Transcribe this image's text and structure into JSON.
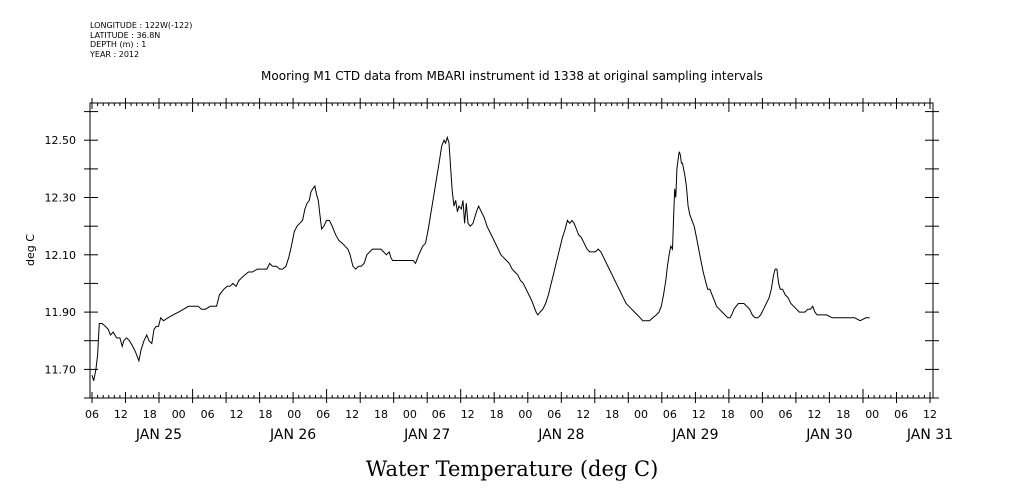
{
  "meta": {
    "longitude": "LONGITUDE : 122W(-122)",
    "latitude": "LATITUDE : 36.8N",
    "depth": "DEPTH (m) : 1",
    "year": "YEAR : 2012"
  },
  "chart_data": {
    "type": "line",
    "title": "Mooring M1 CTD data from MBARI instrument id 1338 at original sampling intervals",
    "xlabel": "Water Temperature (deg C)",
    "ylabel": "deg C",
    "xlim": [
      0,
      150
    ],
    "ylim": [
      11.6,
      12.63
    ],
    "hour_tick_labels": [
      "06",
      "12",
      "18",
      "00",
      "06",
      "12",
      "18",
      "00",
      "06",
      "12",
      "18",
      "00",
      "06",
      "12",
      "18",
      "00",
      "06",
      "12",
      "18",
      "00",
      "06",
      "12",
      "18",
      "00",
      "06",
      "12",
      "18",
      "00",
      "06",
      "12"
    ],
    "day_labels": [
      {
        "label": "JAN 25",
        "x": 12
      },
      {
        "label": "JAN 26",
        "x": 36
      },
      {
        "label": "JAN 27",
        "x": 60
      },
      {
        "label": "JAN 28",
        "x": 84
      },
      {
        "label": "JAN 29",
        "x": 108
      },
      {
        "label": "JAN 30",
        "x": 132
      },
      {
        "label": "JAN 31",
        "x": 150
      }
    ],
    "yticks": [
      {
        "value": 11.7,
        "label": "11.70"
      },
      {
        "value": 11.9,
        "label": "11.90"
      },
      {
        "value": 12.1,
        "label": "12.10"
      },
      {
        "value": 12.3,
        "label": "12.30"
      },
      {
        "value": 12.5,
        "label": "12.50"
      }
    ],
    "series": [
      {
        "points": [
          [
            0,
            11.68
          ],
          [
            0.3,
            11.66
          ],
          [
            0.7,
            11.7
          ],
          [
            1.0,
            11.75
          ],
          [
            1.3,
            11.86
          ],
          [
            1.8,
            11.86
          ],
          [
            2.4,
            11.85
          ],
          [
            2.9,
            11.84
          ],
          [
            3.3,
            11.82
          ],
          [
            3.8,
            11.83
          ],
          [
            4.4,
            11.81
          ],
          [
            5.0,
            11.81
          ],
          [
            5.4,
            11.78
          ],
          [
            5.7,
            11.8
          ],
          [
            6.2,
            11.81
          ],
          [
            6.7,
            11.8
          ],
          [
            7.3,
            11.78
          ],
          [
            7.8,
            11.76
          ],
          [
            8.4,
            11.73
          ],
          [
            8.8,
            11.77
          ],
          [
            9.3,
            11.8
          ],
          [
            9.8,
            11.82
          ],
          [
            10.2,
            11.8
          ],
          [
            10.7,
            11.79
          ],
          [
            11.1,
            11.84
          ],
          [
            11.5,
            11.85
          ],
          [
            11.9,
            11.85
          ],
          [
            12.3,
            11.88
          ],
          [
            12.8,
            11.87
          ],
          [
            13.6,
            11.88
          ],
          [
            14.5,
            11.89
          ],
          [
            15.5,
            11.9
          ],
          [
            16.4,
            11.91
          ],
          [
            17.3,
            11.92
          ],
          [
            18.2,
            11.92
          ],
          [
            19.0,
            11.92
          ],
          [
            19.6,
            11.91
          ],
          [
            20.3,
            11.91
          ],
          [
            21.2,
            11.92
          ],
          [
            22.3,
            11.92
          ],
          [
            22.8,
            11.96
          ],
          [
            23.6,
            11.98
          ],
          [
            24.2,
            11.99
          ],
          [
            24.7,
            11.99
          ],
          [
            25.2,
            12.0
          ],
          [
            25.8,
            11.99
          ],
          [
            26.3,
            12.01
          ],
          [
            26.8,
            12.02
          ],
          [
            27.4,
            12.03
          ],
          [
            28.0,
            12.04
          ],
          [
            28.7,
            12.04
          ],
          [
            29.6,
            12.05
          ],
          [
            30.5,
            12.05
          ],
          [
            31.3,
            12.05
          ],
          [
            31.8,
            12.07
          ],
          [
            32.3,
            12.06
          ],
          [
            33.0,
            12.06
          ],
          [
            33.6,
            12.05
          ],
          [
            34.1,
            12.05
          ],
          [
            34.7,
            12.06
          ],
          [
            35.2,
            12.09
          ],
          [
            35.7,
            12.13
          ],
          [
            36.2,
            12.18
          ],
          [
            36.7,
            12.2
          ],
          [
            37.2,
            12.21
          ],
          [
            37.7,
            12.22
          ],
          [
            38.1,
            12.26
          ],
          [
            38.5,
            12.28
          ],
          [
            38.9,
            12.29
          ],
          [
            39.2,
            12.32
          ],
          [
            39.5,
            12.33
          ],
          [
            39.9,
            12.34
          ],
          [
            40.2,
            12.31
          ],
          [
            40.5,
            12.29
          ],
          [
            40.8,
            12.24
          ],
          [
            41.1,
            12.19
          ],
          [
            41.5,
            12.2
          ],
          [
            42.0,
            12.22
          ],
          [
            42.5,
            12.22
          ],
          [
            43.0,
            12.2
          ],
          [
            43.6,
            12.17
          ],
          [
            44.2,
            12.15
          ],
          [
            44.8,
            12.14
          ],
          [
            45.3,
            12.13
          ],
          [
            45.8,
            12.12
          ],
          [
            46.2,
            12.1
          ],
          [
            46.7,
            12.06
          ],
          [
            47.2,
            12.05
          ],
          [
            47.7,
            12.06
          ],
          [
            48.2,
            12.06
          ],
          [
            48.7,
            12.07
          ],
          [
            49.2,
            12.1
          ],
          [
            49.7,
            12.11
          ],
          [
            50.2,
            12.12
          ],
          [
            50.7,
            12.12
          ],
          [
            51.2,
            12.12
          ],
          [
            51.7,
            12.12
          ],
          [
            52.2,
            12.11
          ],
          [
            52.7,
            12.1
          ],
          [
            53.2,
            12.11
          ],
          [
            53.5,
            12.09
          ],
          [
            53.8,
            12.08
          ],
          [
            54.3,
            12.08
          ],
          [
            55.0,
            12.08
          ],
          [
            55.7,
            12.08
          ],
          [
            56.5,
            12.08
          ],
          [
            57.5,
            12.08
          ],
          [
            57.9,
            12.07
          ],
          [
            58.5,
            12.1
          ],
          [
            59.2,
            12.13
          ],
          [
            59.7,
            12.14
          ],
          [
            60.2,
            12.19
          ],
          [
            60.7,
            12.25
          ],
          [
            61.2,
            12.31
          ],
          [
            61.7,
            12.37
          ],
          [
            62.2,
            12.43
          ],
          [
            62.6,
            12.48
          ],
          [
            63.0,
            12.5
          ],
          [
            63.3,
            12.49
          ],
          [
            63.6,
            12.51
          ],
          [
            63.9,
            12.49
          ],
          [
            64.2,
            12.4
          ],
          [
            64.5,
            12.32
          ],
          [
            64.8,
            12.27
          ],
          [
            65.1,
            12.29
          ],
          [
            65.4,
            12.25
          ],
          [
            65.7,
            12.27
          ],
          [
            66.1,
            12.26
          ],
          [
            66.4,
            12.29
          ],
          [
            66.7,
            12.21
          ],
          [
            67.0,
            12.28
          ],
          [
            67.3,
            12.21
          ],
          [
            67.7,
            12.2
          ],
          [
            68.2,
            12.21
          ],
          [
            68.5,
            12.23
          ],
          [
            68.8,
            12.25
          ],
          [
            69.2,
            12.27
          ],
          [
            69.7,
            12.25
          ],
          [
            70.2,
            12.23
          ],
          [
            70.7,
            12.2
          ],
          [
            71.2,
            12.18
          ],
          [
            71.7,
            12.16
          ],
          [
            72.2,
            12.14
          ],
          [
            72.7,
            12.12
          ],
          [
            73.2,
            12.1
          ],
          [
            73.7,
            12.09
          ],
          [
            74.2,
            12.08
          ],
          [
            74.7,
            12.07
          ],
          [
            75.2,
            12.05
          ],
          [
            75.7,
            12.04
          ],
          [
            76.2,
            12.03
          ],
          [
            76.7,
            12.01
          ],
          [
            77.2,
            12.0
          ],
          [
            77.7,
            11.98
          ],
          [
            78.2,
            11.96
          ],
          [
            78.7,
            11.94
          ],
          [
            79.1,
            11.92
          ],
          [
            79.5,
            11.9
          ],
          [
            79.8,
            11.89
          ],
          [
            80.2,
            11.9
          ],
          [
            80.7,
            11.91
          ],
          [
            81.2,
            11.93
          ],
          [
            81.7,
            11.96
          ],
          [
            82.2,
            12.0
          ],
          [
            82.7,
            12.04
          ],
          [
            83.2,
            12.08
          ],
          [
            83.7,
            12.12
          ],
          [
            84.2,
            12.16
          ],
          [
            84.7,
            12.19
          ],
          [
            85.1,
            12.22
          ],
          [
            85.5,
            12.21
          ],
          [
            85.9,
            12.22
          ],
          [
            86.3,
            12.21
          ],
          [
            86.7,
            12.19
          ],
          [
            87.1,
            12.17
          ],
          [
            87.6,
            12.16
          ],
          [
            88.1,
            12.14
          ],
          [
            88.6,
            12.12
          ],
          [
            89.1,
            12.11
          ],
          [
            89.6,
            12.11
          ],
          [
            90.1,
            12.11
          ],
          [
            90.6,
            12.12
          ],
          [
            91.1,
            12.11
          ],
          [
            91.6,
            12.09
          ],
          [
            92.1,
            12.07
          ],
          [
            92.6,
            12.05
          ],
          [
            93.1,
            12.03
          ],
          [
            93.6,
            12.01
          ],
          [
            94.1,
            11.99
          ],
          [
            94.6,
            11.97
          ],
          [
            95.1,
            11.95
          ],
          [
            95.6,
            11.93
          ],
          [
            96.1,
            11.92
          ],
          [
            96.6,
            11.91
          ],
          [
            97.1,
            11.9
          ],
          [
            97.6,
            11.89
          ],
          [
            98.1,
            11.88
          ],
          [
            98.6,
            11.87
          ],
          [
            99.2,
            11.87
          ],
          [
            99.8,
            11.87
          ],
          [
            100.4,
            11.88
          ],
          [
            101.0,
            11.89
          ],
          [
            101.5,
            11.9
          ],
          [
            101.9,
            11.92
          ],
          [
            102.3,
            11.96
          ],
          [
            102.7,
            12.01
          ],
          [
            103.0,
            12.06
          ],
          [
            103.3,
            12.1
          ],
          [
            103.6,
            12.13
          ],
          [
            103.9,
            12.12
          ],
          [
            104.1,
            12.23
          ],
          [
            104.3,
            12.33
          ],
          [
            104.5,
            12.3
          ],
          [
            104.7,
            12.4
          ],
          [
            104.9,
            12.43
          ],
          [
            105.1,
            12.46
          ],
          [
            105.3,
            12.45
          ],
          [
            105.5,
            12.42
          ],
          [
            105.7,
            12.42
          ],
          [
            105.9,
            12.4
          ],
          [
            106.1,
            12.38
          ],
          [
            106.4,
            12.34
          ],
          [
            106.7,
            12.27
          ],
          [
            107.0,
            12.24
          ],
          [
            107.4,
            12.22
          ],
          [
            107.8,
            12.2
          ],
          [
            108.2,
            12.16
          ],
          [
            108.6,
            12.12
          ],
          [
            109.0,
            12.08
          ],
          [
            109.4,
            12.04
          ],
          [
            109.8,
            12.01
          ],
          [
            110.2,
            11.98
          ],
          [
            110.6,
            11.98
          ],
          [
            111.0,
            11.96
          ],
          [
            111.4,
            11.94
          ],
          [
            111.8,
            11.92
          ],
          [
            112.3,
            11.91
          ],
          [
            112.8,
            11.9
          ],
          [
            113.3,
            11.89
          ],
          [
            113.8,
            11.88
          ],
          [
            114.2,
            11.88
          ],
          [
            114.5,
            11.89
          ],
          [
            114.9,
            11.91
          ],
          [
            115.3,
            11.92
          ],
          [
            115.7,
            11.93
          ],
          [
            116.2,
            11.93
          ],
          [
            116.7,
            11.93
          ],
          [
            117.2,
            11.92
          ],
          [
            117.7,
            11.91
          ],
          [
            118.2,
            11.89
          ],
          [
            118.7,
            11.88
          ],
          [
            119.2,
            11.88
          ],
          [
            119.7,
            11.89
          ],
          [
            120.2,
            11.91
          ],
          [
            120.7,
            11.93
          ],
          [
            121.2,
            11.95
          ],
          [
            121.6,
            11.98
          ],
          [
            122.0,
            12.03
          ],
          [
            122.3,
            12.05
          ],
          [
            122.6,
            12.05
          ],
          [
            122.9,
            12.0
          ],
          [
            123.2,
            11.98
          ],
          [
            123.6,
            11.98
          ],
          [
            124.1,
            11.96
          ],
          [
            124.6,
            11.95
          ],
          [
            125.1,
            11.93
          ],
          [
            125.6,
            11.92
          ],
          [
            126.1,
            11.91
          ],
          [
            126.6,
            11.9
          ],
          [
            127.1,
            11.9
          ],
          [
            127.6,
            11.9
          ],
          [
            128.1,
            11.91
          ],
          [
            128.6,
            11.91
          ],
          [
            129.0,
            11.92
          ],
          [
            129.4,
            11.9
          ],
          [
            129.8,
            11.89
          ],
          [
            130.5,
            11.89
          ],
          [
            131.5,
            11.89
          ],
          [
            132.5,
            11.88
          ],
          [
            133.5,
            11.88
          ],
          [
            134.5,
            11.88
          ],
          [
            135.5,
            11.88
          ],
          [
            136.5,
            11.88
          ],
          [
            137.5,
            11.87
          ],
          [
            138.5,
            11.88
          ],
          [
            139.2,
            11.88
          ]
        ]
      }
    ]
  }
}
